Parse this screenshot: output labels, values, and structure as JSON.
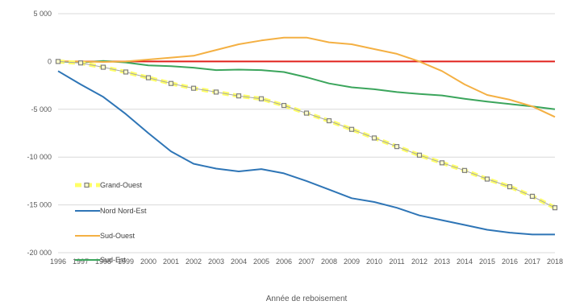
{
  "chart_data": {
    "type": "line",
    "xlabel": "Année de reboisement",
    "ylabel": "",
    "ylim": [
      -20000,
      5000
    ],
    "yticks": [
      5000,
      0,
      -5000,
      -10000,
      -15000,
      -20000
    ],
    "ytick_labels": [
      "5 000",
      "0",
      "-5 000",
      "-10 000",
      "-15 000",
      "-20 000"
    ],
    "x": [
      "1996",
      "1997",
      "1998",
      "1999",
      "2000",
      "2001",
      "2002",
      "2003",
      "2004",
      "2005",
      "2006",
      "2007",
      "2008",
      "2009",
      "2010",
      "2011",
      "2012",
      "2013",
      "2014",
      "2015",
      "2016",
      "2017",
      "2018"
    ],
    "grid": "horizontal",
    "legend_position": "left",
    "reference_line": {
      "y": 0,
      "color": "#e0201b"
    },
    "series": [
      {
        "name": "Grand-Ouest",
        "color": "#7f7f7f",
        "highlight": "#ffff66",
        "marker": "square",
        "values": [
          0,
          -150,
          -600,
          -1100,
          -1700,
          -2300,
          -2800,
          -3200,
          -3600,
          -3900,
          -4600,
          -5400,
          -6200,
          -7100,
          -8000,
          -8900,
          -9800,
          -10600,
          -11400,
          -12300,
          -13100,
          -14100,
          -15300
        ]
      },
      {
        "name": "Nord Nord-Est",
        "color": "#2e75b6",
        "values": [
          -1000,
          -2400,
          -3700,
          -5500,
          -7500,
          -9400,
          -10700,
          -11200,
          -11500,
          -11250,
          -11700,
          -12500,
          -13400,
          -14300,
          -14700,
          -15300,
          -16100,
          -16600,
          -17100,
          -17600,
          -17900,
          -18100,
          -18100
        ]
      },
      {
        "name": "Sud-Ouest",
        "color": "#f4b043",
        "values": [
          0,
          0,
          -50,
          0,
          200,
          400,
          600,
          1200,
          1800,
          2200,
          2500,
          2500,
          2000,
          1800,
          1300,
          800,
          0,
          -1000,
          -2400,
          -3500,
          -4000,
          -4700,
          -5800
        ]
      },
      {
        "name": "Sud-Est",
        "color": "#3ba55c",
        "values": [
          0,
          -100,
          50,
          -100,
          -400,
          -500,
          -650,
          -900,
          -850,
          -900,
          -1100,
          -1650,
          -2300,
          -2700,
          -2900,
          -3200,
          -3400,
          -3550,
          -3900,
          -4200,
          -4450,
          -4700,
          -5000
        ]
      }
    ]
  }
}
